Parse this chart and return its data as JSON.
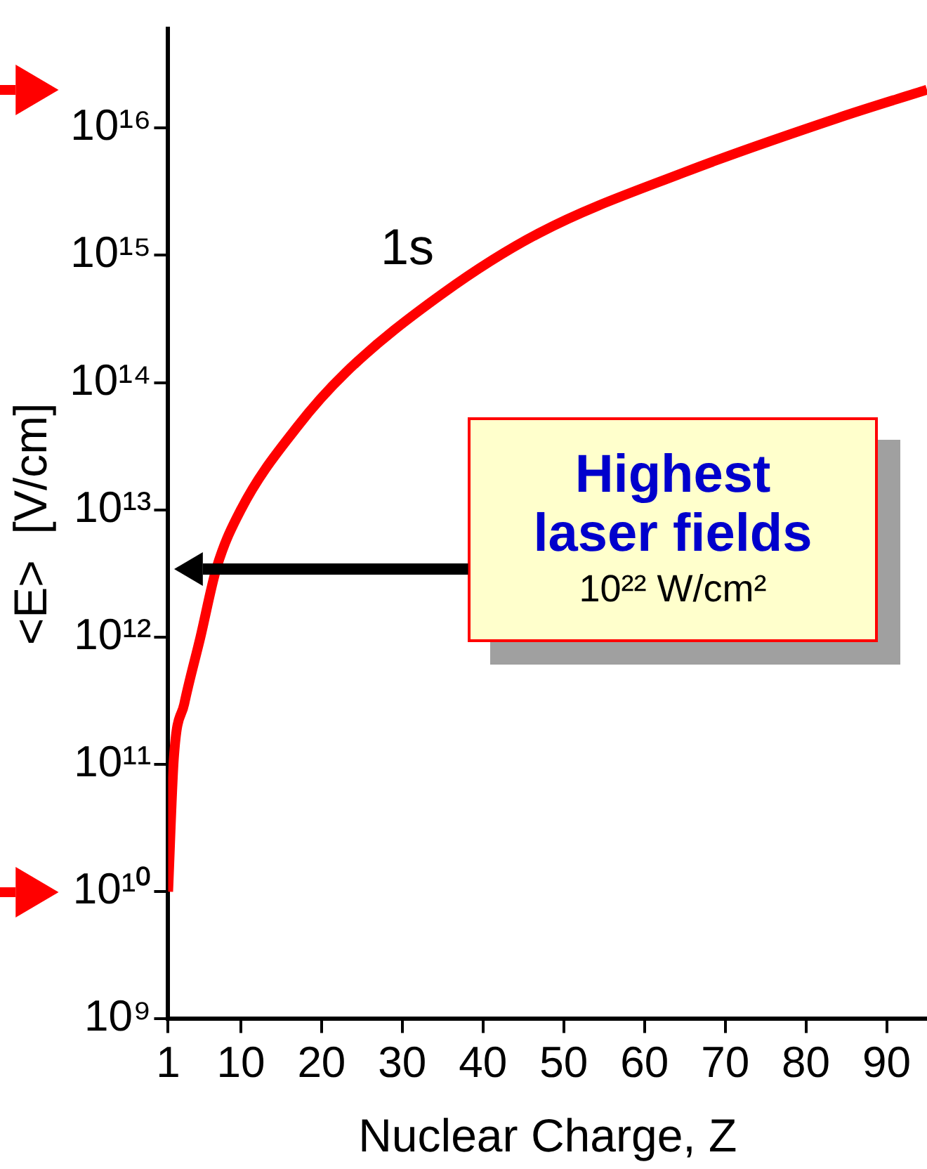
{
  "chart_data": {
    "type": "line",
    "xlabel": "Nuclear Charge, Z",
    "ylabel": "<E>  [V/cm]",
    "x": [
      1,
      1.7,
      3,
      5,
      7,
      10,
      17,
      23,
      35,
      47,
      65,
      84,
      95
    ],
    "series": [
      {
        "color": "#ff0000",
        "values": [
          10000000000.0,
          110000000000.0,
          300000000000.0,
          1000000000000.0,
          3500000000000.0,
          10000000000000.0,
          45000000000000.0,
          120000000000000.0,
          500000000000000.0,
          1500000000000000.0,
          4500000000000000.0,
          1.2e+16,
          2e+16
        ]
      }
    ],
    "xlim": [
      1,
      95
    ],
    "ylim": [
      1000000000.0,
      6e+16
    ],
    "xticks": [
      1,
      10,
      20,
      30,
      40,
      50,
      60,
      70,
      80,
      90
    ],
    "yticks": [
      {
        "value": 1000000000.0,
        "label": "10⁹"
      },
      {
        "value": 10000000000.0,
        "label": "10¹⁰"
      },
      {
        "value": 100000000000.0,
        "label": "10¹¹"
      },
      {
        "value": 1000000000000.0,
        "label": "10¹²"
      },
      {
        "value": 10000000000000.0,
        "label": "10¹³"
      },
      {
        "value": 100000000000000.0,
        "label": "10¹⁴"
      },
      {
        "value": 1000000000000000.0,
        "label": "10¹⁵"
      },
      {
        "value": 1e+16,
        "label": "10¹⁶"
      }
    ],
    "log": "y",
    "grid": false,
    "legend": false,
    "marker": "none",
    "line_style": "solid",
    "annotations": [
      "1s",
      "Highest laser fields",
      "10²² W/cm²"
    ]
  }
}
